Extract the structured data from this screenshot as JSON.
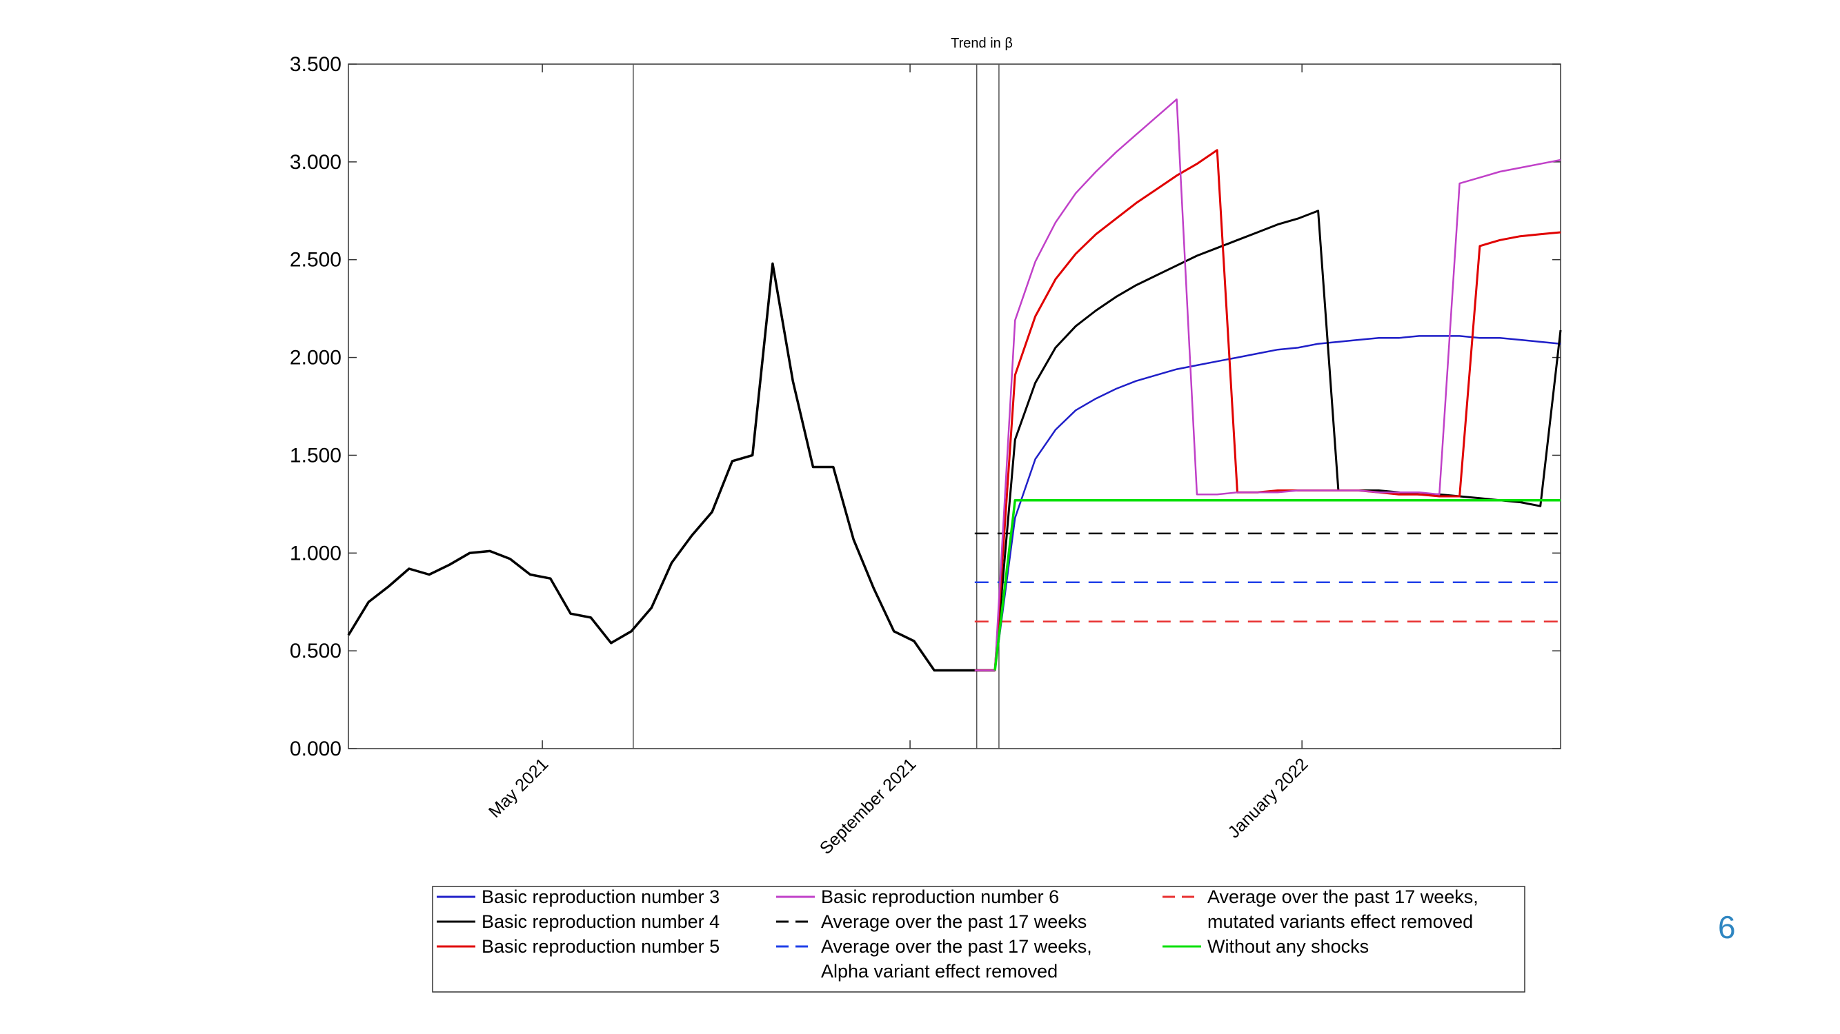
{
  "slide": {
    "page_number": "6"
  },
  "chart_data": {
    "type": "line",
    "title": "Trend in β",
    "xlabel": "",
    "ylabel": "",
    "ylim": [
      0,
      3.5
    ],
    "xlim": [
      0,
      60
    ],
    "yticks": [
      0,
      0.5,
      1.0,
      1.5,
      2.0,
      2.5,
      3.0,
      3.5
    ],
    "ytick_labels": [
      "0.000",
      "0.500",
      "1.000",
      "1.500",
      "2.000",
      "2.500",
      "3.000",
      "3.500"
    ],
    "xticks": [
      9.6,
      27.8,
      47.2
    ],
    "xtick_labels": [
      "May 2021",
      "September 2021",
      "January 2022"
    ],
    "vertical_lines": [
      14.1,
      31.1,
      32.2
    ],
    "historical": {
      "x": [
        0,
        1,
        2,
        3,
        4,
        5,
        6,
        7,
        8,
        9,
        10,
        11,
        12,
        13,
        14,
        15,
        16,
        17,
        18,
        19,
        20,
        21,
        22,
        23,
        24,
        25,
        26,
        27,
        28,
        29,
        30,
        31,
        32
      ],
      "y": [
        0.58,
        0.75,
        0.83,
        0.92,
        0.89,
        0.94,
        1.0,
        1.01,
        0.97,
        0.89,
        0.87,
        0.69,
        0.67,
        0.54,
        0.6,
        0.72,
        0.95,
        1.09,
        1.21,
        1.47,
        1.5,
        2.48,
        1.88,
        1.44,
        1.44,
        1.07,
        0.82,
        0.6,
        0.55,
        0.4,
        0.4,
        0.4,
        0.4
      ]
    },
    "series": [
      {
        "name": "Basic reproduction number 3",
        "color": "#1f1fc8",
        "dash": "solid",
        "width": 2.5,
        "x": [
          31,
          32,
          33,
          34,
          35,
          36,
          37,
          38,
          39,
          40,
          41,
          42,
          43,
          44,
          45,
          46,
          47,
          48,
          49,
          50,
          51,
          52,
          53,
          54,
          55,
          56,
          57,
          58,
          59,
          60
        ],
        "y": [
          0.4,
          0.4,
          1.18,
          1.48,
          1.63,
          1.73,
          1.79,
          1.84,
          1.88,
          1.91,
          1.94,
          1.96,
          1.98,
          2.0,
          2.02,
          2.04,
          2.05,
          2.07,
          2.08,
          2.09,
          2.1,
          2.1,
          2.11,
          2.11,
          2.11,
          2.1,
          2.1,
          2.09,
          2.08,
          2.07
        ]
      },
      {
        "name": "Basic reproduction number 4",
        "color": "#000000",
        "dash": "solid",
        "width": 3,
        "x": [
          31,
          32,
          33,
          34,
          35,
          36,
          37,
          38,
          39,
          40,
          41,
          42,
          43,
          44,
          45,
          46,
          47,
          48,
          49,
          50,
          51,
          52,
          53,
          54,
          55,
          56,
          57,
          58,
          59,
          60
        ],
        "y": [
          0.4,
          0.4,
          1.58,
          1.87,
          2.05,
          2.16,
          2.24,
          2.31,
          2.37,
          2.42,
          2.47,
          2.52,
          2.56,
          2.6,
          2.64,
          2.68,
          2.71,
          2.75,
          1.32,
          1.32,
          1.32,
          1.31,
          1.3,
          1.3,
          1.29,
          1.28,
          1.27,
          1.26,
          1.24,
          2.14
        ]
      },
      {
        "name": "Basic reproduction number 5",
        "color": "#e00000",
        "dash": "solid",
        "width": 3,
        "x": [
          31,
          32,
          33,
          34,
          35,
          36,
          37,
          38,
          39,
          40,
          41,
          42,
          43,
          44,
          45,
          46,
          47,
          48,
          49,
          50,
          51,
          52,
          53,
          54,
          55,
          56,
          57,
          58,
          59,
          60
        ],
        "y": [
          0.4,
          0.4,
          1.91,
          2.21,
          2.4,
          2.53,
          2.63,
          2.71,
          2.79,
          2.86,
          2.93,
          2.99,
          3.06,
          1.31,
          1.31,
          1.32,
          1.32,
          1.32,
          1.32,
          1.32,
          1.31,
          1.3,
          1.3,
          1.29,
          1.29,
          2.57,
          2.6,
          2.62,
          2.63,
          2.64
        ]
      },
      {
        "name": "Basic reproduction number 6",
        "color": "#c040c8",
        "dash": "solid",
        "width": 2.5,
        "x": [
          31,
          32,
          33,
          34,
          35,
          36,
          37,
          38,
          39,
          40,
          41,
          42,
          43,
          44,
          45,
          46,
          47,
          48,
          49,
          50,
          51,
          52,
          53,
          54,
          55,
          56,
          57,
          58,
          59,
          60
        ],
        "y": [
          0.4,
          0.4,
          2.19,
          2.49,
          2.69,
          2.84,
          2.95,
          3.05,
          3.14,
          3.23,
          3.32,
          1.3,
          1.3,
          1.31,
          1.31,
          1.31,
          1.32,
          1.32,
          1.32,
          1.32,
          1.31,
          1.31,
          1.31,
          1.3,
          2.89,
          2.92,
          2.95,
          2.97,
          2.99,
          3.01
        ]
      },
      {
        "name": "Average over the past 17 weeks",
        "color": "#000000",
        "dash": "dashed",
        "width": 2.5,
        "x": [
          31,
          60
        ],
        "y": [
          1.1,
          1.1
        ]
      },
      {
        "name": "Average over the past 17 weeks, Alpha variant effect removed",
        "color": "#1f3fe8",
        "dash": "dashed",
        "width": 2.5,
        "x": [
          31,
          60
        ],
        "y": [
          0.85,
          0.85
        ]
      },
      {
        "name": "Average over the past 17 weeks, mutated variants effect removed",
        "color": "#e83030",
        "dash": "dashed",
        "width": 2.5,
        "x": [
          31,
          60
        ],
        "y": [
          0.65,
          0.65
        ]
      },
      {
        "name": "Without any shocks",
        "color": "#00e000",
        "dash": "solid",
        "width": 3.5,
        "x": [
          32,
          33,
          60
        ],
        "y": [
          0.4,
          1.27,
          1.27
        ]
      }
    ],
    "legend": {
      "position": "bottom",
      "columns": [
        [
          {
            "lines": [
              "Basic reproduction number 3"
            ],
            "color": "#1f1fc8",
            "dash": "solid"
          },
          {
            "lines": [
              "Basic reproduction number 4"
            ],
            "color": "#000000",
            "dash": "solid"
          },
          {
            "lines": [
              "Basic reproduction number 5"
            ],
            "color": "#e00000",
            "dash": "solid"
          }
        ],
        [
          {
            "lines": [
              "Basic reproduction number 6"
            ],
            "color": "#c040c8",
            "dash": "solid"
          },
          {
            "lines": [
              "Average over the past 17 weeks"
            ],
            "color": "#000000",
            "dash": "dashed"
          },
          {
            "lines": [
              "Average over the past 17 weeks,",
              "Alpha variant effect removed"
            ],
            "color": "#1f3fe8",
            "dash": "dashed"
          }
        ],
        [
          {
            "lines": [
              "Average over the past 17 weeks,",
              "mutated variants effect removed"
            ],
            "color": "#e83030",
            "dash": "dashed"
          },
          {
            "lines": [
              "Without any shocks"
            ],
            "color": "#00e000",
            "dash": "solid"
          }
        ]
      ]
    }
  }
}
